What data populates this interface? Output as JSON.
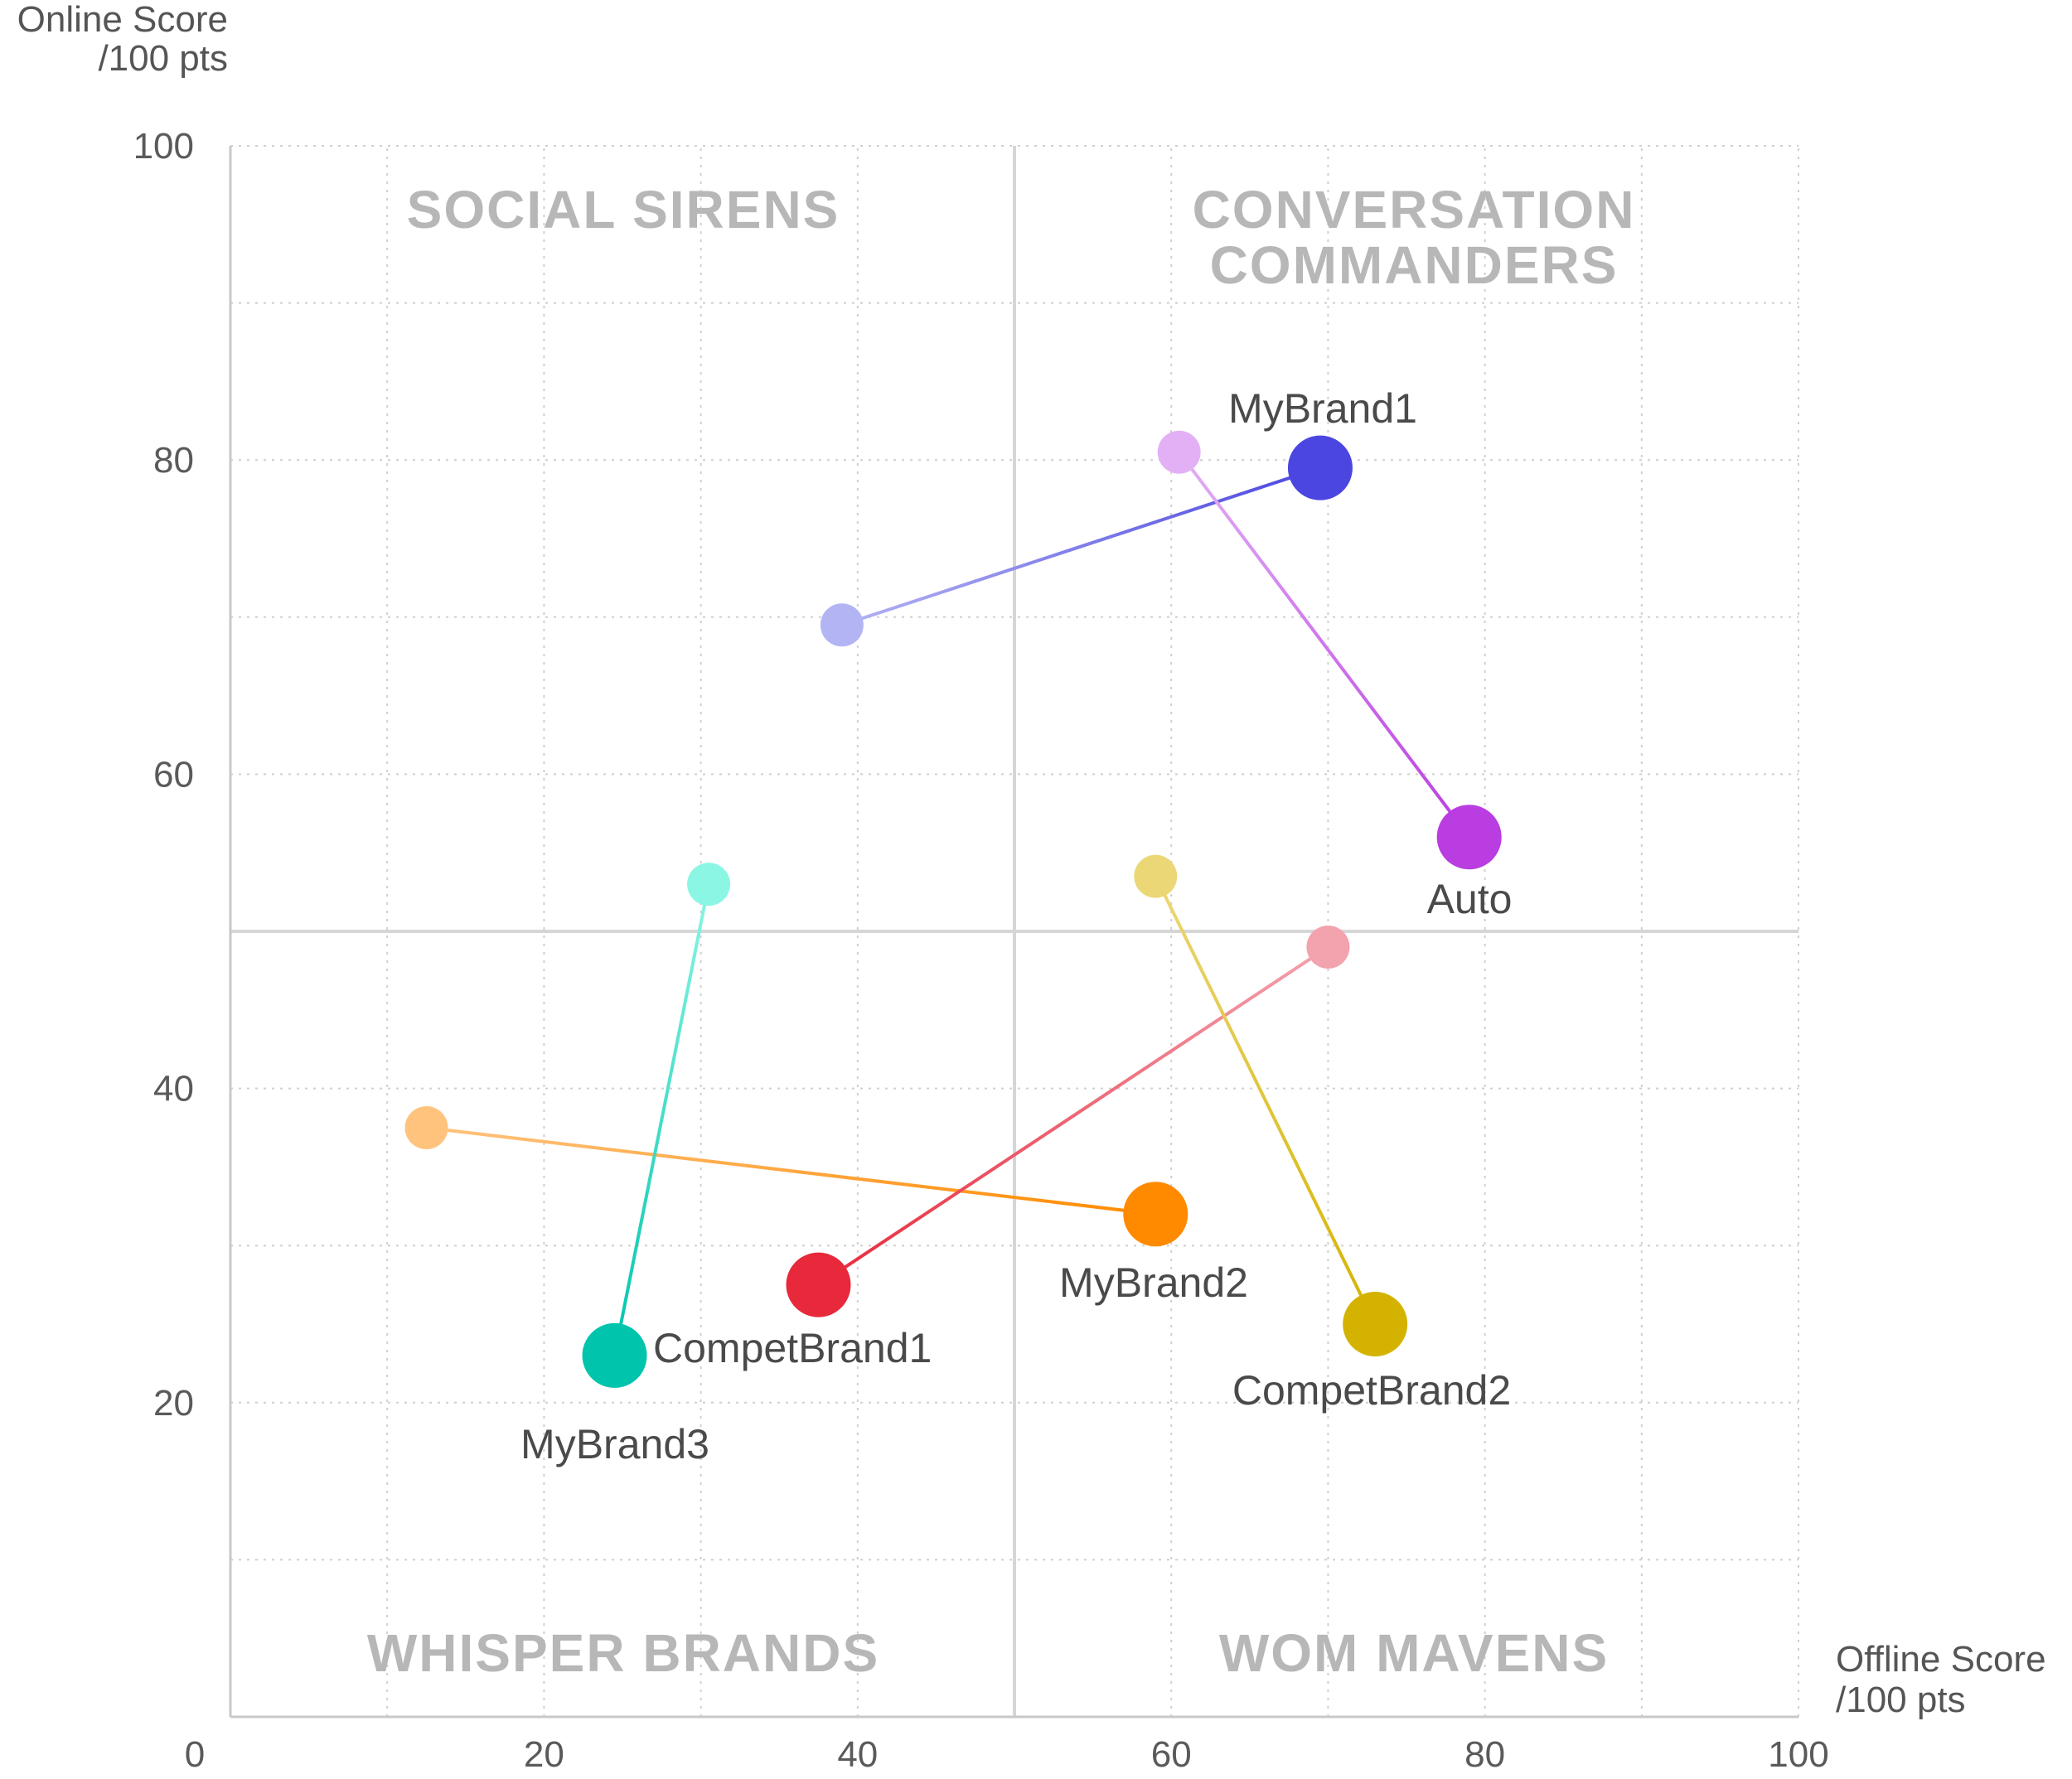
{
  "chart_data": {
    "type": "scatter",
    "xlabel": [
      "Offline Score",
      "/100 pts"
    ],
    "ylabel": [
      "Online Score",
      "/100 pts"
    ],
    "xlim": [
      0,
      100
    ],
    "ylim": [
      0,
      100
    ],
    "x_ticks": [
      "0",
      "20",
      "40",
      "60",
      "80",
      "100"
    ],
    "y_ticks": [
      "100",
      "80",
      "60",
      "40",
      "20"
    ],
    "grid": true,
    "divider": {
      "x": 50,
      "y": 50
    },
    "quadrants": {
      "top_left": [
        "SOCIAL SIRENS"
      ],
      "top_right": [
        "CONVERSATION",
        "COMMANDERS"
      ],
      "bottom_left": [
        "WHISPER BRANDS"
      ],
      "bottom_right": [
        "WOM MAVENS"
      ]
    },
    "series": [
      {
        "name": "MyBrand1",
        "color": "#4b46e0",
        "start_color": "#b3b4f3",
        "start": [
          39,
          69.5
        ],
        "end": [
          69.5,
          79.5
        ]
      },
      {
        "name": "Auto",
        "color": "#b93de0",
        "start_color": "#e3b0f6",
        "start": [
          60.5,
          80.5
        ],
        "end": [
          79,
          56
        ]
      },
      {
        "name": "MyBrand2",
        "color": "#ff8a00",
        "start_color": "#ffc37e",
        "start": [
          12.5,
          37.5
        ],
        "end": [
          59,
          32
        ]
      },
      {
        "name": "CompetBrand1",
        "color": "#e8293c",
        "start_color": "#f3a3ae",
        "start": [
          70,
          49
        ],
        "end": [
          37.5,
          27.5
        ]
      },
      {
        "name": "CompetBrand2",
        "color": "#d4b300",
        "start_color": "#ecd777",
        "start": [
          59,
          53.5
        ],
        "end": [
          73,
          25
        ]
      },
      {
        "name": "MyBrand3",
        "color": "#00c4ac",
        "start_color": "#8cf6e4",
        "start": [
          30.5,
          53
        ],
        "end": [
          24.5,
          23
        ]
      }
    ]
  }
}
